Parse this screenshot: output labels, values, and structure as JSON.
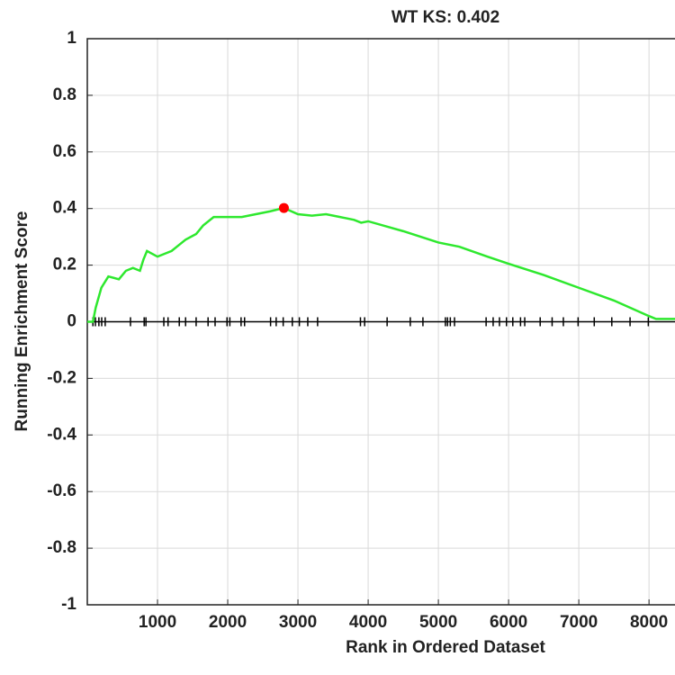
{
  "chart_data": {
    "type": "line",
    "title": "WT KS: 0.402",
    "xlabel": "Rank in Ordered Dataset",
    "ylabel": "Running Enrichment Score",
    "xlim": [
      0,
      8370
    ],
    "ylim": [
      -1,
      1
    ],
    "xticks": [
      1000,
      2000,
      3000,
      4000,
      5000,
      6000,
      7000,
      8000
    ],
    "yticks": [
      -1,
      -0.8,
      -0.6,
      -0.4,
      -0.2,
      0,
      0.2,
      0.4,
      0.6,
      0.8,
      1
    ],
    "grid": true,
    "series": [
      {
        "name": "Running Enrichment Score",
        "color": "#2ee82e",
        "x": [
          0,
          80,
          120,
          200,
          300,
          450,
          550,
          650,
          750,
          800,
          850,
          1000,
          1100,
          1200,
          1300,
          1400,
          1550,
          1650,
          1800,
          2000,
          2200,
          2400,
          2600,
          2800,
          3000,
          3200,
          3400,
          3600,
          3800,
          3900,
          4000,
          4500,
          5000,
          5300,
          5700,
          6000,
          6500,
          7000,
          7500,
          8000,
          8100,
          8370
        ],
        "values": [
          0,
          0,
          0.05,
          0.12,
          0.16,
          0.15,
          0.18,
          0.19,
          0.18,
          0.22,
          0.25,
          0.23,
          0.24,
          0.25,
          0.27,
          0.29,
          0.31,
          0.34,
          0.37,
          0.37,
          0.37,
          0.38,
          0.39,
          0.402,
          0.38,
          0.375,
          0.38,
          0.37,
          0.36,
          0.35,
          0.355,
          0.32,
          0.28,
          0.265,
          0.23,
          0.205,
          0.165,
          0.12,
          0.075,
          0.02,
          0.01,
          0.01
        ]
      }
    ],
    "peak": {
      "x": 2800,
      "y": 0.402,
      "color": "#ff0000"
    },
    "hits": [
      80,
      115,
      165,
      205,
      255,
      615,
      810,
      835,
      1090,
      1150,
      1310,
      1400,
      1550,
      1720,
      1820,
      1990,
      2030,
      2190,
      2240,
      2610,
      2690,
      2790,
      2920,
      3020,
      3140,
      3280,
      3890,
      3950,
      4270,
      4600,
      4780,
      5100,
      5130,
      5170,
      5230,
      5680,
      5780,
      5870,
      5970,
      6060,
      6170,
      6230,
      6450,
      6620,
      6780,
      6990,
      7220,
      7470,
      7730,
      7990
    ]
  }
}
